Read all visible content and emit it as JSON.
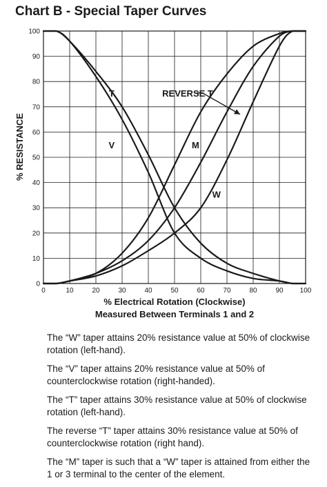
{
  "title": "Chart B - Special Taper Curves",
  "chart_data": {
    "type": "line",
    "title": "Chart B - Special Taper Curves",
    "xlabel": "% Electrical Rotation (Clockwise)",
    "xlabel2": "Measured Between Terminals 1 and 2",
    "ylabel": "% RESISTANCE",
    "xlim": [
      0,
      100
    ],
    "ylim": [
      0,
      100
    ],
    "xticks": [
      0,
      10,
      20,
      30,
      40,
      50,
      60,
      70,
      80,
      90,
      100
    ],
    "yticks": [
      0,
      10,
      20,
      30,
      40,
      50,
      60,
      70,
      80,
      90,
      100
    ],
    "grid": true,
    "series": [
      {
        "name": "T",
        "x": [
          0,
          5,
          10,
          20,
          30,
          40,
          50,
          60,
          70,
          80,
          90,
          95,
          100
        ],
        "y": [
          100,
          100,
          96,
          84,
          70,
          51,
          30,
          16,
          8,
          4,
          1,
          0,
          0
        ]
      },
      {
        "name": "V",
        "x": [
          0,
          5,
          10,
          20,
          30,
          40,
          50,
          60,
          70,
          80,
          90,
          95,
          100
        ],
        "y": [
          100,
          100,
          96,
          82,
          65,
          44,
          20,
          10,
          5,
          2,
          1,
          0,
          0
        ]
      },
      {
        "name": "M",
        "x": [
          0,
          5,
          10,
          20,
          30,
          40,
          50,
          60,
          70,
          80,
          90,
          95,
          100
        ],
        "y": [
          0,
          0,
          1,
          4,
          12,
          26,
          47,
          68,
          83,
          94,
          99,
          100,
          100
        ]
      },
      {
        "name": "W",
        "x": [
          0,
          5,
          10,
          20,
          30,
          40,
          50,
          60,
          70,
          80,
          90,
          95,
          100
        ],
        "y": [
          0,
          0,
          1,
          3,
          7,
          13,
          20,
          30,
          49,
          72,
          94,
          100,
          100
        ]
      },
      {
        "name": "REVERSE T",
        "x": [
          0,
          5,
          10,
          20,
          30,
          40,
          50,
          60,
          70,
          80,
          90,
          95,
          100
        ],
        "y": [
          0,
          0,
          1,
          4,
          9,
          17,
          30,
          48,
          68,
          86,
          98,
          100,
          100
        ]
      }
    ],
    "labels": {
      "T": "T",
      "V": "V",
      "M": "M",
      "W": "W",
      "REVERSE_T": "REVERSE T"
    }
  },
  "notes": [
    "The “W” taper attains 20% resistance value at 50% of clockwise rotation (left-hand).",
    "The “V” taper attains 20% resistance value at 50% of counterclockwise rotation (right-handed).",
    "The “T” taper attains 30% resistance value at 50% of clockwise rotation (left-hand).",
    "The reverse “T” taper attains 30% resistance value at 50% of counterclockwise rotation (right hand).",
    "The “M” taper is such that a “W” taper is attained from either the 1 or 3 terminal to the center of the element."
  ]
}
